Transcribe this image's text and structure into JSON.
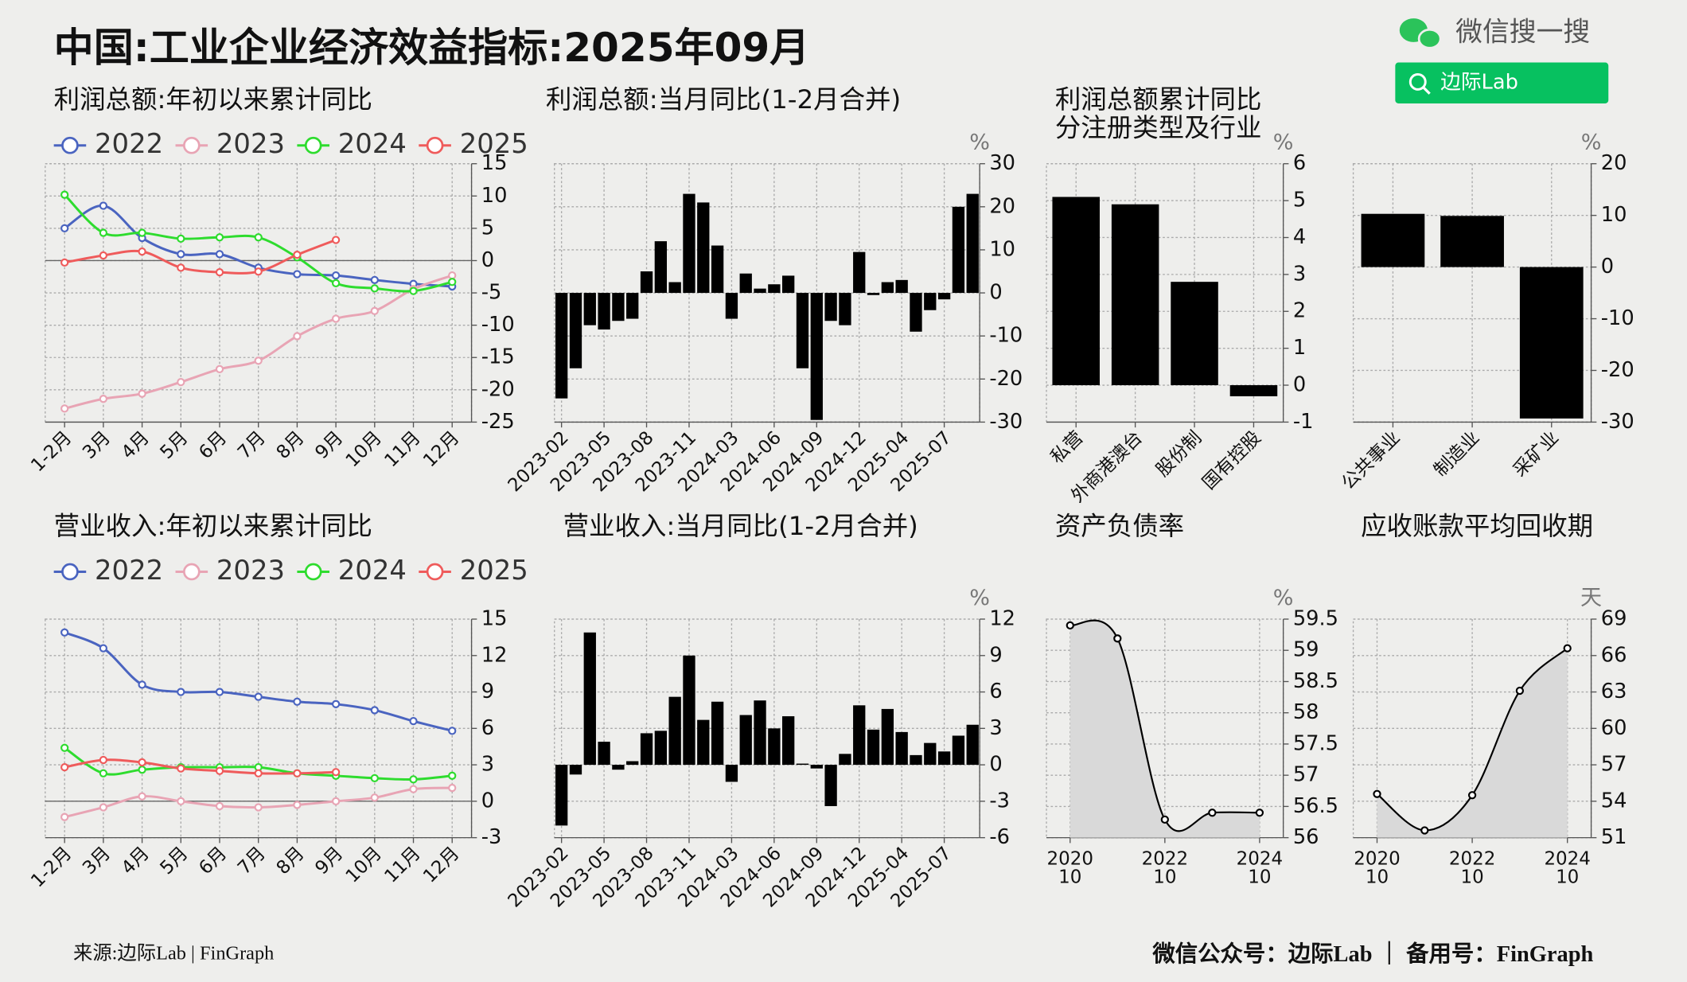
{
  "header": {
    "title": "中国:工业企业经济效益指标:2025年09月",
    "search_brand": "微信搜一搜",
    "search_text": "边际Lab"
  },
  "footer": {
    "source": "来源:边际Lab | FinGraph",
    "note": "微信公众号：边际Lab ｜ 备用号：FinGraph"
  },
  "chart_data": [
    {
      "type": "line",
      "title": "利润总额:年初以来累计同比",
      "categories": [
        "1-2月",
        "3月",
        "4月",
        "5月",
        "6月",
        "7月",
        "8月",
        "9月",
        "10月",
        "11月",
        "12月"
      ],
      "series": [
        {
          "name": "2022",
          "color": "#4a64c0",
          "values": [
            5.0,
            8.5,
            3.5,
            1.0,
            1.0,
            -1.1,
            -2.1,
            -2.3,
            -3.0,
            -3.6,
            -4.0
          ]
        },
        {
          "name": "2023",
          "color": "#e8a4b4",
          "values": [
            -22.9,
            -21.4,
            -20.6,
            -18.8,
            -16.8,
            -15.5,
            -11.7,
            -9.0,
            -7.8,
            -4.4,
            -2.3
          ]
        },
        {
          "name": "2024",
          "color": "#2edc2e",
          "values": [
            10.2,
            4.3,
            4.3,
            3.4,
            3.6,
            3.6,
            0.5,
            -3.5,
            -4.3,
            -4.7,
            -3.3
          ]
        },
        {
          "name": "2025",
          "color": "#ef5b5b",
          "values": [
            -0.3,
            0.8,
            1.4,
            -1.1,
            -1.8,
            -1.7,
            0.9,
            3.2,
            null,
            null,
            null
          ]
        }
      ],
      "ylim": [
        -25,
        15
      ],
      "yticks": [
        -25,
        -20,
        -15,
        -10,
        -5,
        0,
        5,
        10,
        15
      ],
      "grid": true,
      "legend": "top"
    },
    {
      "type": "bar",
      "title": "利润总额:当月同比(1-2月合并)",
      "unit": "%",
      "color": "#000000",
      "categories": [
        "2023-02",
        null,
        null,
        "2023-05",
        null,
        null,
        "2023-08",
        null,
        null,
        "2023-11",
        null,
        null,
        "2024-03",
        null,
        null,
        "2024-06",
        null,
        null,
        "2024-09",
        null,
        null,
        "2024-12",
        null,
        null,
        "2025-04",
        null,
        null,
        "2025-07",
        null,
        null
      ],
      "values": [
        -24.5,
        -17.5,
        -7.5,
        -8.5,
        -6.5,
        -6,
        5,
        12,
        2.5,
        23,
        21,
        11,
        -6,
        4.5,
        1,
        2,
        4,
        -17.5,
        -29.5,
        -6.5,
        -7.5,
        9.5,
        -0.5,
        2.5,
        3,
        -9,
        -4,
        -1.5,
        20,
        23
      ],
      "ylim": [
        -30,
        30
      ],
      "yticks": [
        -30,
        -20,
        -10,
        0,
        10,
        20,
        30
      ],
      "grid": true
    },
    {
      "type": "bar",
      "title": "利润总额累计同比",
      "subtitle": "分注册类型及行业",
      "unit": "%",
      "color": "#000000",
      "categories": [
        "私营",
        "外商港澳台",
        "股份制",
        "国有控股"
      ],
      "values": [
        5.1,
        4.9,
        2.8,
        -0.3
      ],
      "ylim": [
        -1,
        6
      ],
      "yticks": [
        -1,
        0,
        1,
        2,
        3,
        4,
        5,
        6
      ],
      "grid": true
    },
    {
      "type": "bar",
      "unit": "%",
      "color": "#000000",
      "categories": [
        "公共事业",
        "制造业",
        "采矿业"
      ],
      "values": [
        10.3,
        9.9,
        -29.3
      ],
      "ylim": [
        -30,
        20
      ],
      "yticks": [
        -30,
        -20,
        -10,
        0,
        10,
        20
      ],
      "grid": true
    },
    {
      "type": "line",
      "title": "营业收入:年初以来累计同比",
      "categories": [
        "1-2月",
        "3月",
        "4月",
        "5月",
        "6月",
        "7月",
        "8月",
        "9月",
        "10月",
        "11月",
        "12月"
      ],
      "series": [
        {
          "name": "2022",
          "color": "#4a64c0",
          "values": [
            13.9,
            12.6,
            9.6,
            9.0,
            9.0,
            8.6,
            8.2,
            8.0,
            7.5,
            6.6,
            5.8
          ]
        },
        {
          "name": "2023",
          "color": "#e8a4b4",
          "values": [
            -1.3,
            -0.5,
            0.4,
            0,
            -0.4,
            -0.5,
            -0.3,
            0,
            0.3,
            1.0,
            1.1
          ]
        },
        {
          "name": "2024",
          "color": "#2edc2e",
          "values": [
            4.4,
            2.3,
            2.6,
            2.8,
            2.8,
            2.8,
            2.3,
            2.1,
            1.9,
            1.8,
            2.1
          ]
        },
        {
          "name": "2025",
          "color": "#ef5b5b",
          "values": [
            2.8,
            3.4,
            3.2,
            2.7,
            2.5,
            2.3,
            2.3,
            2.4,
            null,
            null,
            null
          ]
        }
      ],
      "ylim": [
        -3,
        15
      ],
      "yticks": [
        -3,
        0,
        3,
        6,
        9,
        12,
        15
      ],
      "grid": true,
      "legend": "top"
    },
    {
      "type": "bar",
      "title": "营业收入:当月同比(1-2月合并)",
      "unit": "%",
      "color": "#000000",
      "categories": [
        "2023-02",
        null,
        null,
        "2023-05",
        null,
        null,
        "2023-08",
        null,
        null,
        "2023-11",
        null,
        null,
        "2024-03",
        null,
        null,
        "2024-06",
        null,
        null,
        "2024-09",
        null,
        null,
        "2024-12",
        null,
        null,
        "2025-04",
        null,
        null,
        "2025-07",
        null,
        null
      ],
      "values": [
        -5.0,
        -0.8,
        10.9,
        1.9,
        -0.4,
        0.3,
        2.6,
        2.8,
        5.6,
        9.0,
        3.7,
        5.2,
        -1.4,
        4.1,
        5.3,
        3.0,
        4.0,
        0.1,
        -0.3,
        -3.4,
        0.9,
        4.9,
        2.9,
        4.6,
        2.7,
        0.8,
        1.8,
        1.1,
        2.4,
        3.3
      ],
      "ylim": [
        -6,
        12
      ],
      "yticks": [
        -6,
        -3,
        0,
        3,
        6,
        9,
        12
      ],
      "grid": true
    },
    {
      "type": "area",
      "title": "资产负债率",
      "unit": "%",
      "color": "#000000",
      "categories": [
        "2020 10",
        null,
        "2022 10",
        null,
        "2024 10"
      ],
      "values": [
        59.4,
        59.19,
        56.29,
        56.4,
        56.4
      ],
      "ylim": [
        56,
        59.5
      ],
      "yticks": [
        56,
        56.5,
        57,
        57.5,
        58,
        58.5,
        59,
        59.5
      ],
      "grid": true
    },
    {
      "type": "area",
      "title": "应收账款平均回收期",
      "unit": "天",
      "color": "#000000",
      "categories": [
        "2020 10",
        null,
        "2022 10",
        null,
        "2024 10"
      ],
      "values": [
        54.6,
        51.6,
        54.5,
        63.1,
        66.6
      ],
      "ylim": [
        51,
        69
      ],
      "yticks": [
        51,
        54,
        57,
        60,
        63,
        66,
        69
      ],
      "grid": true
    }
  ]
}
